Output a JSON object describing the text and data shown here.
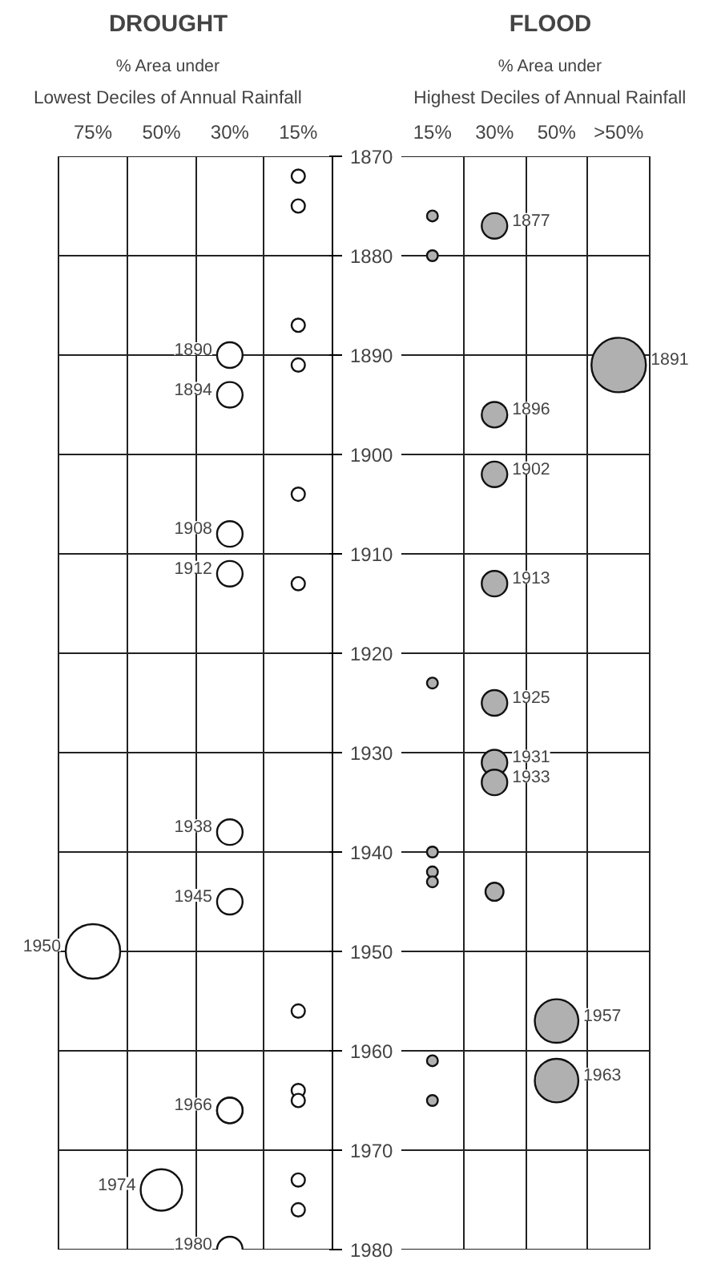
{
  "chart_data": [
    {
      "type": "bubble",
      "title": "DROUGHT",
      "subtitle": "% Area under",
      "xlabel": "Lowest Deciles of Annual Rainfall",
      "categories": [
        "75%",
        "50%",
        "30%",
        "15%"
      ],
      "ylim": [
        1980,
        1870
      ],
      "yticks": [
        1870,
        1880,
        1890,
        1900,
        1910,
        1920,
        1930,
        1940,
        1950,
        1960,
        1970,
        1980
      ],
      "grid": true,
      "series": [
        {
          "color": "#ffffff",
          "x": [
            "15%",
            "15%",
            "30%",
            "15%",
            "30%",
            "15%",
            "30%",
            "30%",
            "15%",
            "30%",
            "30%",
            "15%",
            "30%",
            "75%",
            "15%",
            "15%",
            "15%",
            "30%",
            "15%",
            "50%",
            "15%",
            "30%"
          ],
          "values": [
            1872,
            1875,
            1890,
            1887,
            1894,
            1891,
            1908,
            1912,
            1904,
            1938,
            1945,
            1913,
            1966,
            1950,
            1956,
            1964,
            1965,
            1966,
            1973,
            1974,
            1976,
            1980
          ],
          "sizes": [
            0.06,
            0.06,
            0.22,
            0.06,
            0.22,
            0.06,
            0.22,
            0.22,
            0.06,
            0.22,
            0.22,
            0.06,
            0.22,
            1,
            0.06,
            0.06,
            0.06,
            0.22,
            0.06,
            0.58,
            0.06,
            0.22
          ],
          "value_labels": [
            null,
            null,
            "1890",
            null,
            "1894",
            null,
            "1908",
            "1912",
            null,
            "1938",
            "1945",
            null,
            null,
            "1950",
            null,
            null,
            null,
            "1966",
            null,
            "1974",
            null,
            "1980"
          ]
        }
      ]
    },
    {
      "type": "bubble",
      "title": "FLOOD",
      "subtitle": "% Area under",
      "xlabel": "Highest Deciles of Annual Rainfall",
      "categories": [
        "15%",
        "30%",
        "50%",
        ">50%"
      ],
      "ylim": [
        1980,
        1870
      ],
      "yticks": [
        1870,
        1880,
        1890,
        1900,
        1910,
        1920,
        1930,
        1940,
        1950,
        1960,
        1970,
        1980
      ],
      "grid": true,
      "tick_labels": "x",
      "series": [
        {
          "color": "#b0b0b0",
          "x": [
            "15%",
            "30%",
            "15%",
            ">50%",
            "30%",
            "30%",
            "30%",
            "15%",
            "30%",
            "30%",
            "30%",
            "15%",
            "15%",
            "15%",
            "30%",
            "50%",
            "15%",
            "50%",
            "15%"
          ],
          "values": [
            1876,
            1877,
            1880,
            1891,
            1896,
            1902,
            1913,
            1923,
            1925,
            1931,
            1933,
            1940,
            1942,
            1943,
            1944,
            1957,
            1961,
            1963,
            1965
          ],
          "sizes": [
            0.04,
            0.22,
            0.04,
            1,
            0.22,
            0.22,
            0.22,
            0.04,
            0.22,
            0.22,
            0.22,
            0.04,
            0.04,
            0.04,
            0.11,
            0.64,
            0.04,
            0.64,
            0.04
          ],
          "value_labels": [
            null,
            "1877",
            null,
            "1891",
            "1896",
            "1902",
            "1913",
            null,
            "1925",
            "1931",
            "1933",
            null,
            null,
            null,
            null,
            "1957",
            null,
            "1963",
            null
          ]
        }
      ]
    }
  ]
}
